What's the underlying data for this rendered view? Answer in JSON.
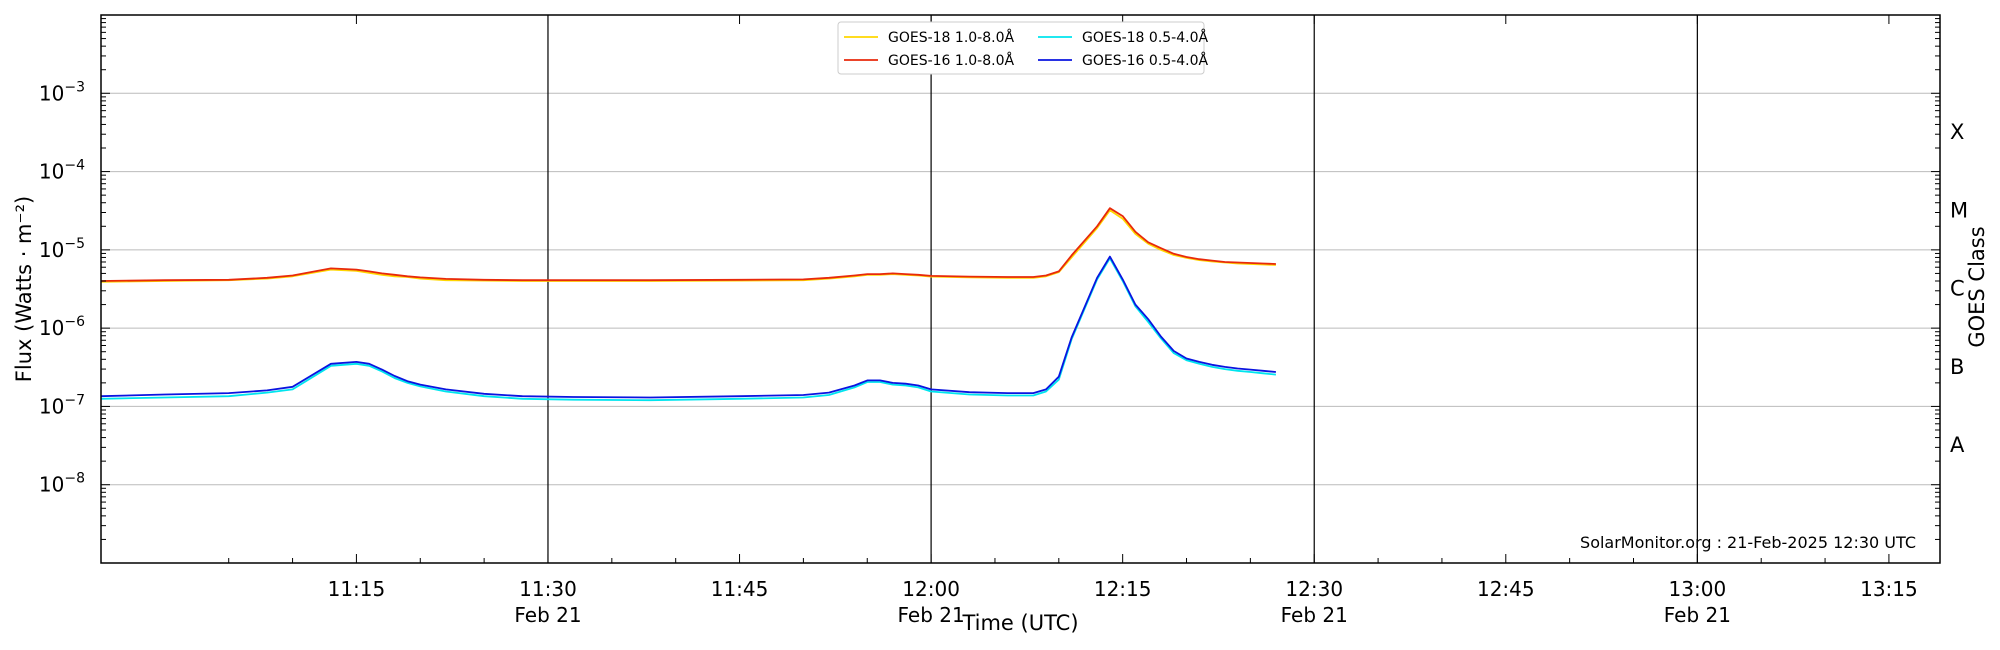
{
  "chart_data": {
    "type": "line",
    "xlabel": "Time (UTC)",
    "ylabel": "Flux (Watts · m⁻²)",
    "ylabel_right": "GOES Class",
    "yscale": "log",
    "ylim": [
      1e-09,
      0.01
    ],
    "xlim": [
      "10:55",
      "13:19"
    ],
    "grid": "horizontal at decades",
    "legend_position": "top-center",
    "credit": "SolarMonitor.org : 21-Feb-2025 12:30 UTC",
    "x_ticks": [
      {
        "time": "11:15",
        "label": "11:15",
        "date": ""
      },
      {
        "time": "11:30",
        "label": "11:30",
        "date": "Feb 21"
      },
      {
        "time": "11:45",
        "label": "11:45",
        "date": ""
      },
      {
        "time": "12:00",
        "label": "12:00",
        "date": "Feb 21"
      },
      {
        "time": "12:15",
        "label": "12:15",
        "date": ""
      },
      {
        "time": "12:30",
        "label": "12:30",
        "date": "Feb 21"
      },
      {
        "time": "12:45",
        "label": "12:45",
        "date": ""
      },
      {
        "time": "13:00",
        "label": "13:00",
        "date": "Feb 21"
      },
      {
        "time": "13:15",
        "label": "13:15",
        "date": ""
      }
    ],
    "vlines": [
      "11:30",
      "12:00",
      "12:30",
      "13:00"
    ],
    "y_ticks": [
      {
        "value": 1e-08,
        "base": "10",
        "exp": "−8"
      },
      {
        "value": 1e-07,
        "base": "10",
        "exp": "−7"
      },
      {
        "value": 1e-06,
        "base": "10",
        "exp": "−6"
      },
      {
        "value": 1e-05,
        "base": "10",
        "exp": "−5"
      },
      {
        "value": 0.0001,
        "base": "10",
        "exp": "−4"
      },
      {
        "value": 0.001,
        "base": "10",
        "exp": "−3"
      }
    ],
    "goes_classes": [
      {
        "label": "A",
        "value": 3.2e-08
      },
      {
        "label": "B",
        "value": 3.2e-07
      },
      {
        "label": "C",
        "value": 3.2e-06
      },
      {
        "label": "M",
        "value": 3.2e-05
      },
      {
        "label": "X",
        "value": 0.00032
      }
    ],
    "x": [
      "10:55",
      "11:00",
      "11:05",
      "11:08",
      "11:10",
      "11:13",
      "11:15",
      "11:16",
      "11:17",
      "11:18",
      "11:19",
      "11:20",
      "11:22",
      "11:25",
      "11:28",
      "11:32",
      "11:38",
      "11:45",
      "11:50",
      "11:52",
      "11:54",
      "11:55",
      "11:56",
      "11:57",
      "11:58",
      "11:59",
      "12:00",
      "12:03",
      "12:06",
      "12:08",
      "12:09",
      "12:10",
      "12:11",
      "12:13",
      "12:14",
      "12:15",
      "12:16",
      "12:17",
      "12:18",
      "12:19",
      "12:20",
      "12:21",
      "12:22",
      "12:23",
      "12:24",
      "12:25",
      "12:26",
      "12:27"
    ],
    "series": [
      {
        "name": "GOES-18 1.0-8.0Å",
        "color": "#ffd700",
        "values": [
          3.9e-06,
          4e-06,
          4.1e-06,
          4.3e-06,
          4.6e-06,
          5.6e-06,
          5.4e-06,
          5.1e-06,
          4.8e-06,
          4.6e-06,
          4.5e-06,
          4.3e-06,
          4.1e-06,
          4.05e-06,
          4e-06,
          4e-06,
          4e-06,
          4.05e-06,
          4.1e-06,
          4.3e-06,
          4.6e-06,
          4.8e-06,
          4.8e-06,
          4.9e-06,
          4.8e-06,
          4.7e-06,
          4.55e-06,
          4.45e-06,
          4.4e-06,
          4.4e-06,
          4.6e-06,
          5.2e-06,
          8e-06,
          1.9e-05,
          3.2e-05,
          2.5e-05,
          1.6e-05,
          1.2e-05,
          1e-05,
          8.6e-06,
          7.9e-06,
          7.4e-06,
          7.1e-06,
          6.9e-06,
          6.7e-06,
          6.6e-06,
          6.5e-06,
          6.4e-06
        ]
      },
      {
        "name": "GOES-16 1.0-8.0Å",
        "color": "#e8290b",
        "values": [
          4e-06,
          4.1e-06,
          4.15e-06,
          4.4e-06,
          4.7e-06,
          5.8e-06,
          5.6e-06,
          5.3e-06,
          5e-06,
          4.8e-06,
          4.6e-06,
          4.45e-06,
          4.25e-06,
          4.15e-06,
          4.1e-06,
          4.1e-06,
          4.1e-06,
          4.15e-06,
          4.2e-06,
          4.4e-06,
          4.7e-06,
          4.9e-06,
          4.9e-06,
          5e-06,
          4.9e-06,
          4.8e-06,
          4.65e-06,
          4.55e-06,
          4.5e-06,
          4.5e-06,
          4.7e-06,
          5.3e-06,
          8.5e-06,
          2e-05,
          3.4e-05,
          2.7e-05,
          1.7e-05,
          1.25e-05,
          1.05e-05,
          8.9e-06,
          8.1e-06,
          7.6e-06,
          7.3e-06,
          7e-06,
          6.9e-06,
          6.8e-06,
          6.7e-06,
          6.6e-06
        ]
      },
      {
        "name": "GOES-18 0.5-4.0Å",
        "color": "#00e5ee",
        "values": [
          1.25e-07,
          1.3e-07,
          1.35e-07,
          1.5e-07,
          1.65e-07,
          3.3e-07,
          3.5e-07,
          3.3e-07,
          2.8e-07,
          2.3e-07,
          2e-07,
          1.8e-07,
          1.55e-07,
          1.35e-07,
          1.25e-07,
          1.22e-07,
          1.2e-07,
          1.25e-07,
          1.3e-07,
          1.4e-07,
          1.75e-07,
          2.05e-07,
          2.05e-07,
          1.9e-07,
          1.85e-07,
          1.75e-07,
          1.55e-07,
          1.42e-07,
          1.38e-07,
          1.38e-07,
          1.55e-07,
          2.2e-07,
          7.2e-07,
          4.2e-06,
          7.8e-06,
          4e-06,
          1.9e-06,
          1.2e-06,
          7.4e-07,
          4.8e-07,
          3.9e-07,
          3.5e-07,
          3.2e-07,
          3e-07,
          2.85e-07,
          2.75e-07,
          2.65e-07,
          2.55e-07
        ]
      },
      {
        "name": "GOES-16 0.5-4.0Å",
        "color": "#0a14e0",
        "values": [
          1.35e-07,
          1.42e-07,
          1.48e-07,
          1.6e-07,
          1.78e-07,
          3.5e-07,
          3.7e-07,
          3.5e-07,
          2.95e-07,
          2.45e-07,
          2.1e-07,
          1.9e-07,
          1.65e-07,
          1.45e-07,
          1.35e-07,
          1.32e-07,
          1.3e-07,
          1.35e-07,
          1.4e-07,
          1.5e-07,
          1.85e-07,
          2.15e-07,
          2.15e-07,
          2e-07,
          1.95e-07,
          1.85e-07,
          1.65e-07,
          1.52e-07,
          1.48e-07,
          1.48e-07,
          1.65e-07,
          2.4e-07,
          7.6e-07,
          4.4e-06,
          8.2e-06,
          4.2e-06,
          2e-06,
          1.3e-06,
          7.8e-07,
          5.1e-07,
          4.1e-07,
          3.7e-07,
          3.4e-07,
          3.2e-07,
          3.05e-07,
          2.95e-07,
          2.85e-07,
          2.75e-07
        ]
      }
    ]
  }
}
